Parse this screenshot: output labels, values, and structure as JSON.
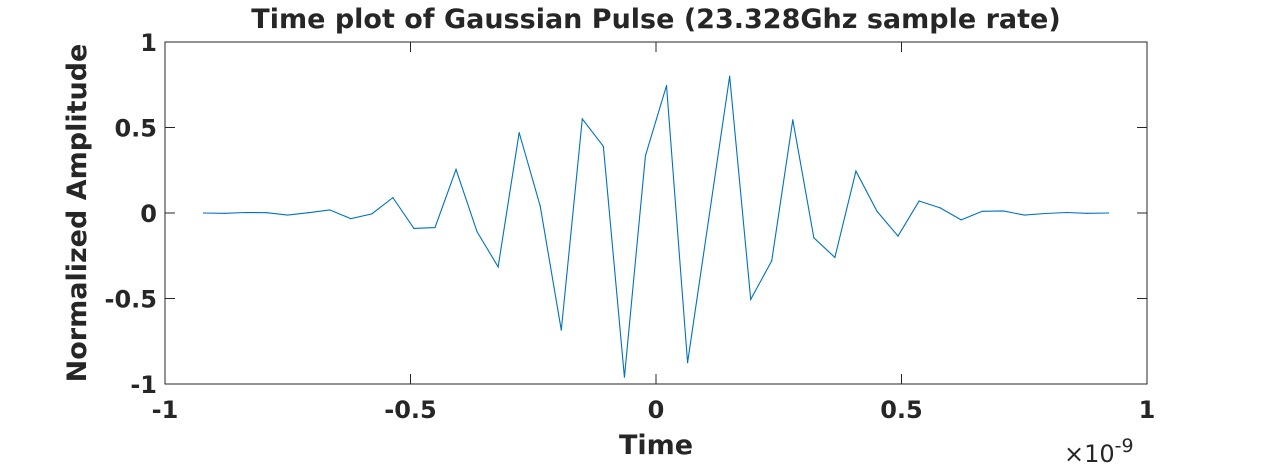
{
  "chart_data": {
    "type": "line",
    "title": "Time plot of Gaussian Pulse (23.328Ghz sample rate)",
    "xlabel": "Time",
    "ylabel": "Normalized Amplitude",
    "x_multiplier_base": "×10",
    "x_multiplier_exponent": "-9",
    "xlim": [
      -1,
      1
    ],
    "ylim": [
      -1,
      1
    ],
    "x_ticks": [
      -1,
      -0.5,
      0,
      0.5,
      1
    ],
    "x_tick_labels": [
      "-1",
      "-0.5",
      "0",
      "0.5",
      "1"
    ],
    "y_ticks": [
      -1,
      -0.5,
      0,
      0.5,
      1
    ],
    "y_tick_labels": [
      "-1",
      "-0.5",
      "0",
      "0.5",
      "1"
    ],
    "grid": false,
    "series": [
      {
        "color": "#0072BD",
        "x": [
          -0.9217,
          -0.8788,
          -0.8359,
          -0.7931,
          -0.7502,
          -0.7073,
          -0.6645,
          -0.6216,
          -0.5787,
          -0.5359,
          -0.493,
          -0.4501,
          -0.4073,
          -0.3644,
          -0.3215,
          -0.2787,
          -0.2358,
          -0.1929,
          -0.1501,
          -0.1072,
          -0.0643,
          -0.0215,
          0.0214,
          0.0643,
          0.1071,
          0.15,
          0.1929,
          0.2357,
          0.2786,
          0.3215,
          0.3643,
          0.4072,
          0.4501,
          0.4929,
          0.5358,
          0.5787,
          0.6215,
          0.6644,
          0.7073,
          0.7501,
          0.793,
          0.8359,
          0.8787,
          0.9216
        ],
        "y": [
          0.0,
          -0.002,
          0.003,
          0.002,
          -0.012,
          0.002,
          0.018,
          -0.033,
          -0.005,
          0.09,
          -0.09,
          -0.085,
          0.255,
          -0.11,
          -0.315,
          0.47,
          0.04,
          -0.685,
          0.55,
          0.39,
          -0.96,
          0.335,
          0.745,
          -0.875,
          -0.04,
          0.8,
          -0.505,
          -0.28,
          0.545,
          -0.145,
          -0.26,
          0.245,
          0.01,
          -0.135,
          0.07,
          0.03,
          -0.04,
          0.01,
          0.012,
          -0.012,
          -0.003,
          0.003,
          -0.002,
          0.0
        ]
      }
    ]
  }
}
